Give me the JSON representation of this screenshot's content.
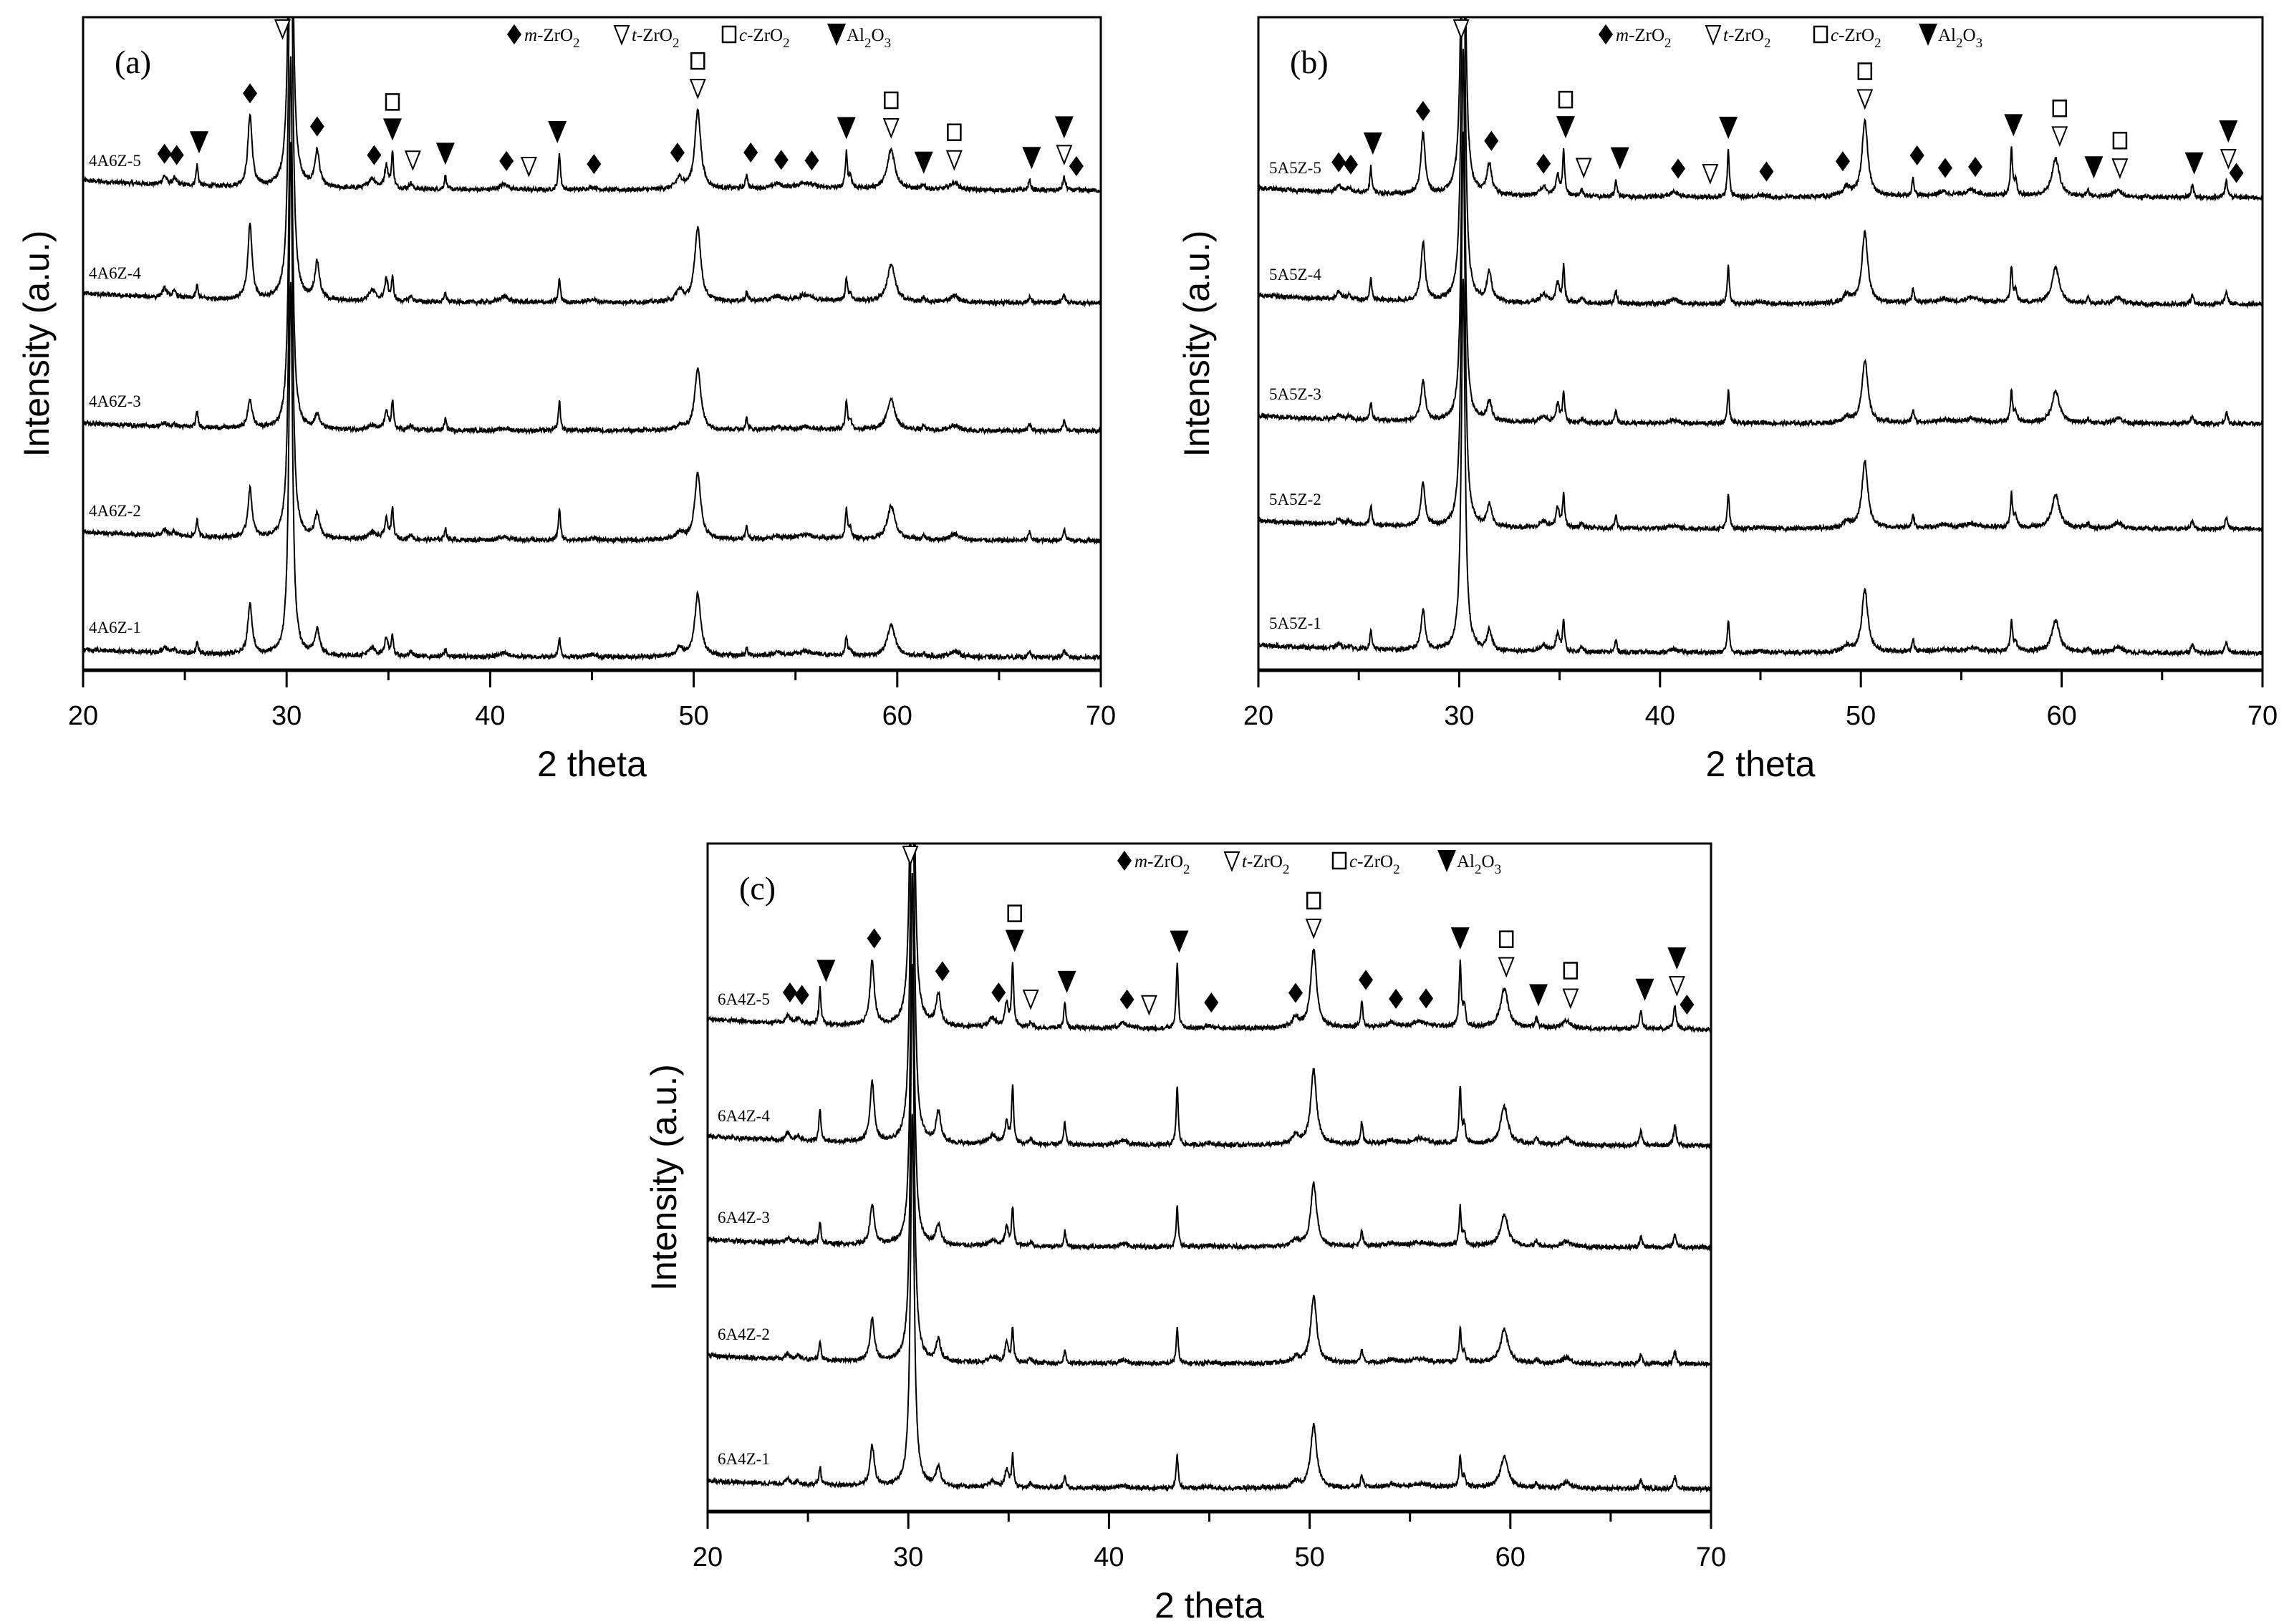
{
  "chart_data": {
    "type": "line",
    "xlabel": "2 theta",
    "ylabel": "Intensity (a.u.)",
    "xlim": [
      20,
      70
    ],
    "xticks": [
      20,
      30,
      40,
      50,
      60,
      70
    ],
    "grid": false,
    "legend": {
      "placement": "top-center",
      "items": [
        {
          "phase": "m",
          "symbol": "diamond-filled",
          "parts": [
            {
              "t": "m",
              "i": true
            },
            {
              "t": "-ZrO"
            },
            {
              "t": "2",
              "sub": true
            }
          ]
        },
        {
          "phase": "t",
          "symbol": "triangle-down-open",
          "parts": [
            {
              "t": "t",
              "i": true
            },
            {
              "t": "-ZrO"
            },
            {
              "t": "2",
              "sub": true
            }
          ]
        },
        {
          "phase": "c",
          "symbol": "square-open",
          "parts": [
            {
              "t": "c",
              "i": true
            },
            {
              "t": "-ZrO"
            },
            {
              "t": "2",
              "sub": true
            }
          ]
        },
        {
          "phase": "a",
          "symbol": "triangle-down-filled",
          "parts": [
            {
              "t": "Al"
            },
            {
              "t": "2",
              "sub": true
            },
            {
              "t": "O"
            },
            {
              "t": "3",
              "sub": true
            }
          ]
        }
      ]
    },
    "peaks": [
      [
        24.0,
        12,
        0.25,
        "m"
      ],
      [
        24.5,
        8,
        0.25,
        "m"
      ],
      [
        25.6,
        32,
        0.12,
        "a"
      ],
      [
        28.2,
        100,
        0.25,
        "m"
      ],
      [
        30.2,
        650,
        0.22,
        "t"
      ],
      [
        31.5,
        50,
        0.28,
        "m"
      ],
      [
        34.2,
        14,
        0.45,
        "m"
      ],
      [
        34.9,
        32,
        0.2,
        "t"
      ],
      [
        35.2,
        55,
        0.12,
        "a"
      ],
      [
        36.1,
        8,
        0.2,
        "t"
      ],
      [
        37.8,
        22,
        0.12,
        "a"
      ],
      [
        40.7,
        8,
        0.5,
        "m"
      ],
      [
        43.4,
        58,
        0.12,
        "a"
      ],
      [
        45.0,
        4,
        0.5,
        "m"
      ],
      [
        49.3,
        15,
        0.4,
        "m"
      ],
      [
        50.2,
        110,
        0.35,
        "t"
      ],
      [
        52.6,
        22,
        0.12,
        "a"
      ],
      [
        54.1,
        6,
        0.5,
        "m"
      ],
      [
        55.5,
        8,
        0.8,
        "m"
      ],
      [
        57.5,
        55,
        0.12,
        "a"
      ],
      [
        57.7,
        18,
        0.15,
        "a"
      ],
      [
        59.7,
        55,
        0.45,
        "t"
      ],
      [
        61.3,
        8,
        0.15,
        "a"
      ],
      [
        62.8,
        10,
        0.5,
        "t"
      ],
      [
        66.5,
        15,
        0.15,
        "a"
      ],
      [
        68.2,
        20,
        0.15,
        "a"
      ]
    ],
    "panels": [
      {
        "label": "(a)",
        "series": [
          {
            "name": "4A6Z-5",
            "offset": 670,
            "scale": 1.0,
            "m_factor": 1.0,
            "a_factor": 0.9
          },
          {
            "name": "4A6Z-4",
            "offset": 513,
            "scale": 0.95,
            "m_factor": 1.1,
            "a_factor": 0.6
          },
          {
            "name": "4A6Z-3",
            "offset": 334,
            "scale": 0.8,
            "m_factor": 0.5,
            "a_factor": 0.9
          },
          {
            "name": "4A6Z-2",
            "offset": 181,
            "scale": 0.85,
            "m_factor": 0.8,
            "a_factor": 0.9
          },
          {
            "name": "4A6Z-1",
            "offset": 18,
            "scale": 0.8,
            "m_factor": 0.9,
            "a_factor": 0.6
          }
        ],
        "markers": [
          {
            "x": 24.0,
            "stack": [
              "m"
            ]
          },
          {
            "x": 24.6,
            "stack": [
              "m"
            ]
          },
          {
            "x": 25.7,
            "stack": [
              "a"
            ]
          },
          {
            "x": 28.2,
            "stack": [
              "m"
            ]
          },
          {
            "x": 29.8,
            "stack": [
              "t"
            ],
            "top": true
          },
          {
            "x": 31.5,
            "stack": [
              "m"
            ]
          },
          {
            "x": 34.3,
            "stack": [
              "m"
            ]
          },
          {
            "x": 35.2,
            "stack": [
              "a",
              "c"
            ]
          },
          {
            "x": 36.2,
            "stack": [
              "t"
            ]
          },
          {
            "x": 37.8,
            "stack": [
              "a"
            ]
          },
          {
            "x": 40.8,
            "stack": [
              "m"
            ]
          },
          {
            "x": 41.9,
            "stack": [
              "t"
            ]
          },
          {
            "x": 43.3,
            "stack": [
              "a"
            ]
          },
          {
            "x": 45.1,
            "stack": [
              "m"
            ]
          },
          {
            "x": 49.2,
            "stack": [
              "m"
            ]
          },
          {
            "x": 50.2,
            "stack": [
              "t",
              "c"
            ]
          },
          {
            "x": 52.8,
            "stack": [
              "m"
            ]
          },
          {
            "x": 54.3,
            "stack": [
              "m"
            ]
          },
          {
            "x": 55.8,
            "stack": [
              "m"
            ]
          },
          {
            "x": 57.5,
            "stack": [
              "a"
            ]
          },
          {
            "x": 59.7,
            "stack": [
              "t",
              "c"
            ]
          },
          {
            "x": 61.3,
            "stack": [
              "a"
            ]
          },
          {
            "x": 62.8,
            "stack": [
              "t",
              "c"
            ]
          },
          {
            "x": 66.6,
            "stack": [
              "a"
            ]
          },
          {
            "x": 68.2,
            "stack": [
              "t",
              "a"
            ]
          },
          {
            "x": 68.8,
            "stack": [
              "m"
            ]
          }
        ]
      },
      {
        "label": "(b)",
        "series": [
          {
            "name": "5A5Z-5",
            "offset": 660,
            "scale": 0.95,
            "m_factor": 0.9,
            "a_factor": 1.2
          },
          {
            "name": "5A5Z-4",
            "offset": 511,
            "scale": 0.9,
            "m_factor": 0.9,
            "a_factor": 1.0
          },
          {
            "name": "5A5Z-3",
            "offset": 344,
            "scale": 0.8,
            "m_factor": 0.7,
            "a_factor": 1.0
          },
          {
            "name": "5A5Z-2",
            "offset": 197,
            "scale": 0.85,
            "m_factor": 0.7,
            "a_factor": 1.0
          },
          {
            "name": "5A5Z-1",
            "offset": 24,
            "scale": 0.8,
            "m_factor": 0.7,
            "a_factor": 1.0
          }
        ],
        "markers": [
          {
            "x": 24.0,
            "stack": [
              "m"
            ]
          },
          {
            "x": 24.6,
            "stack": [
              "m"
            ]
          },
          {
            "x": 25.7,
            "stack": [
              "a"
            ]
          },
          {
            "x": 28.2,
            "stack": [
              "m"
            ]
          },
          {
            "x": 30.1,
            "stack": [
              "t"
            ],
            "top": true
          },
          {
            "x": 31.6,
            "stack": [
              "m"
            ]
          },
          {
            "x": 34.2,
            "stack": [
              "m"
            ]
          },
          {
            "x": 35.3,
            "stack": [
              "a",
              "c"
            ]
          },
          {
            "x": 36.2,
            "stack": [
              "t"
            ]
          },
          {
            "x": 38.0,
            "stack": [
              "a"
            ]
          },
          {
            "x": 40.9,
            "stack": [
              "m"
            ]
          },
          {
            "x": 42.5,
            "stack": [
              "t"
            ]
          },
          {
            "x": 43.4,
            "stack": [
              "a"
            ]
          },
          {
            "x": 45.3,
            "stack": [
              "m"
            ]
          },
          {
            "x": 49.1,
            "stack": [
              "m"
            ]
          },
          {
            "x": 50.2,
            "stack": [
              "t",
              "c"
            ]
          },
          {
            "x": 52.8,
            "stack": [
              "m"
            ]
          },
          {
            "x": 54.2,
            "stack": [
              "m"
            ]
          },
          {
            "x": 55.7,
            "stack": [
              "m"
            ]
          },
          {
            "x": 57.6,
            "stack": [
              "a"
            ]
          },
          {
            "x": 59.9,
            "stack": [
              "t",
              "c"
            ]
          },
          {
            "x": 61.6,
            "stack": [
              "a"
            ]
          },
          {
            "x": 62.9,
            "stack": [
              "t",
              "c"
            ]
          },
          {
            "x": 66.6,
            "stack": [
              "a"
            ]
          },
          {
            "x": 68.3,
            "stack": [
              "t",
              "a"
            ]
          },
          {
            "x": 68.7,
            "stack": [
              "m"
            ]
          }
        ]
      },
      {
        "label": "(c)",
        "series": [
          {
            "name": "6A4Z-5",
            "offset": 674,
            "scale": 1.0,
            "m_factor": 0.9,
            "a_factor": 1.6
          },
          {
            "name": "6A4Z-4",
            "offset": 511,
            "scale": 0.95,
            "m_factor": 0.9,
            "a_factor": 1.5
          },
          {
            "name": "6A4Z-3",
            "offset": 369,
            "scale": 0.8,
            "m_factor": 0.7,
            "a_factor": 1.2
          },
          {
            "name": "6A4Z-2",
            "offset": 206,
            "scale": 0.85,
            "m_factor": 0.7,
            "a_factor": 1.0
          },
          {
            "name": "6A4Z-1",
            "offset": 32,
            "scale": 0.8,
            "m_factor": 0.7,
            "a_factor": 1.0
          }
        ],
        "markers": [
          {
            "x": 24.1,
            "stack": [
              "m"
            ]
          },
          {
            "x": 24.7,
            "stack": [
              "m"
            ]
          },
          {
            "x": 25.9,
            "stack": [
              "a"
            ]
          },
          {
            "x": 28.3,
            "stack": [
              "m"
            ]
          },
          {
            "x": 30.1,
            "stack": [
              "t"
            ],
            "top": true
          },
          {
            "x": 31.7,
            "stack": [
              "m"
            ]
          },
          {
            "x": 34.5,
            "stack": [
              "m"
            ]
          },
          {
            "x": 35.3,
            "stack": [
              "a",
              "c"
            ]
          },
          {
            "x": 36.1,
            "stack": [
              "t"
            ]
          },
          {
            "x": 37.9,
            "stack": [
              "a"
            ]
          },
          {
            "x": 40.9,
            "stack": [
              "m"
            ]
          },
          {
            "x": 42.0,
            "stack": [
              "t"
            ]
          },
          {
            "x": 43.5,
            "stack": [
              "a"
            ]
          },
          {
            "x": 45.1,
            "stack": [
              "m"
            ]
          },
          {
            "x": 49.3,
            "stack": [
              "m"
            ]
          },
          {
            "x": 50.2,
            "stack": [
              "t",
              "c"
            ]
          },
          {
            "x": 52.8,
            "stack": [
              "m"
            ]
          },
          {
            "x": 54.3,
            "stack": [
              "m"
            ]
          },
          {
            "x": 55.8,
            "stack": [
              "m"
            ]
          },
          {
            "x": 57.5,
            "stack": [
              "a"
            ]
          },
          {
            "x": 59.8,
            "stack": [
              "t",
              "c"
            ]
          },
          {
            "x": 61.4,
            "stack": [
              "a"
            ]
          },
          {
            "x": 63.0,
            "stack": [
              "t",
              "c"
            ]
          },
          {
            "x": 66.7,
            "stack": [
              "a"
            ]
          },
          {
            "x": 68.3,
            "stack": [
              "t",
              "a"
            ]
          },
          {
            "x": 68.8,
            "stack": [
              "m"
            ]
          }
        ]
      }
    ]
  }
}
